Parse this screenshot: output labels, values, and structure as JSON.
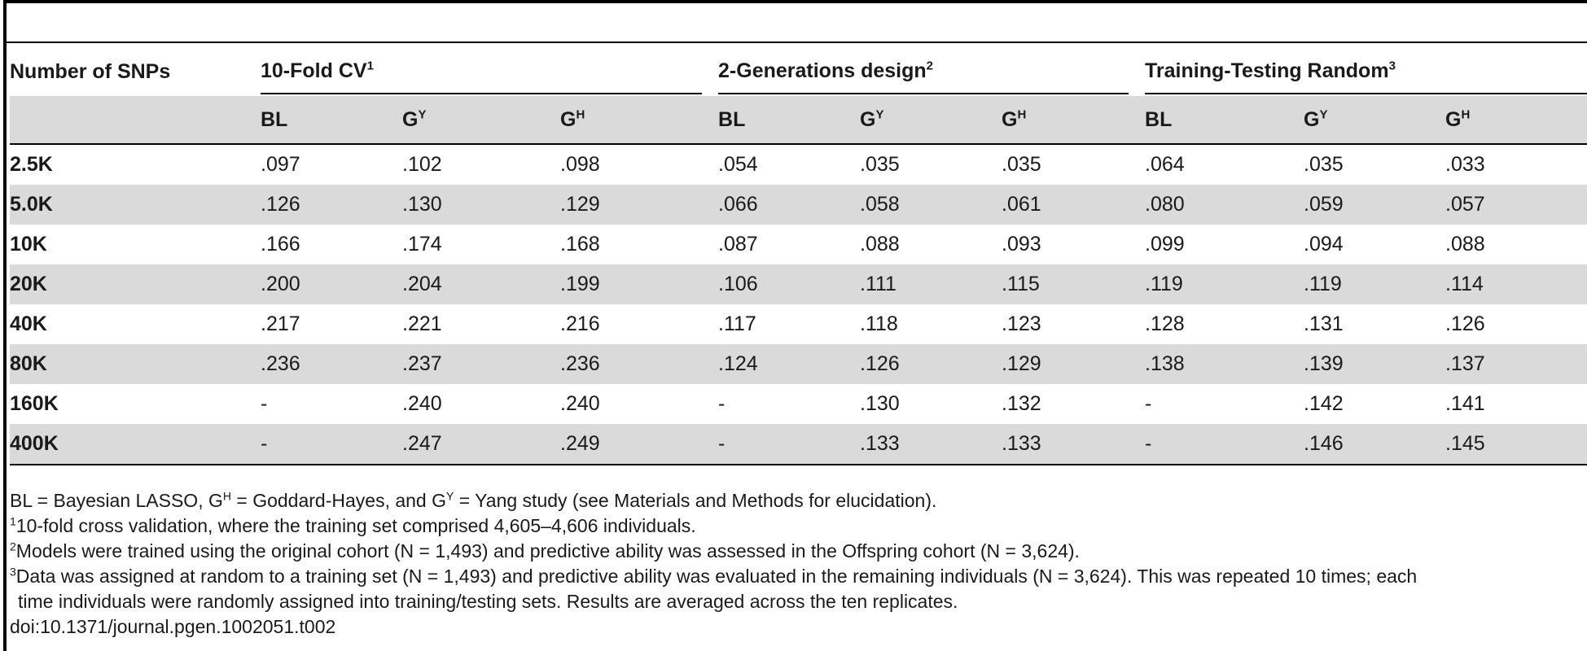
{
  "table": {
    "row_header": "Number of SNPs",
    "groups": [
      {
        "label": "10-Fold CV",
        "note": "1"
      },
      {
        "label": "2-Generations design",
        "note": "2"
      },
      {
        "label": "Training-Testing Random",
        "note": "3"
      }
    ],
    "subcols": [
      {
        "base": "BL",
        "sup": ""
      },
      {
        "base": "G",
        "sup": "Y"
      },
      {
        "base": "G",
        "sup": "H"
      }
    ],
    "rows": [
      {
        "snps": "2.5K",
        "v": [
          ".097",
          ".102",
          ".098",
          ".054",
          ".035",
          ".035",
          ".064",
          ".035",
          ".033"
        ]
      },
      {
        "snps": "5.0K",
        "v": [
          ".126",
          ".130",
          ".129",
          ".066",
          ".058",
          ".061",
          ".080",
          ".059",
          ".057"
        ]
      },
      {
        "snps": "10K",
        "v": [
          ".166",
          ".174",
          ".168",
          ".087",
          ".088",
          ".093",
          ".099",
          ".094",
          ".088"
        ]
      },
      {
        "snps": "20K",
        "v": [
          ".200",
          ".204",
          ".199",
          ".106",
          ".111",
          ".115",
          ".119",
          ".119",
          ".114"
        ]
      },
      {
        "snps": "40K",
        "v": [
          ".217",
          ".221",
          ".216",
          ".117",
          ".118",
          ".123",
          ".128",
          ".131",
          ".126"
        ]
      },
      {
        "snps": "80K",
        "v": [
          ".236",
          ".237",
          ".236",
          ".124",
          ".126",
          ".129",
          ".138",
          ".139",
          ".137"
        ]
      },
      {
        "snps": "160K",
        "v": [
          "-",
          ".240",
          ".240",
          "-",
          ".130",
          ".132",
          "-",
          ".142",
          ".141"
        ]
      },
      {
        "snps": "400K",
        "v": [
          "-",
          ".247",
          ".249",
          "-",
          ".133",
          ".133",
          "-",
          ".146",
          ".145"
        ]
      }
    ]
  },
  "footnotes": {
    "abbrev": {
      "p1": "BL = Bayesian LASSO, G",
      "s1": "H",
      "p2": " = Goddard-Hayes, and G",
      "s2": "Y",
      "p3": " = Yang study (see Materials and Methods for elucidation)."
    },
    "notes": [
      {
        "mark": "1",
        "text": "10-fold cross validation, where the training set comprised 4,605–4,606 individuals."
      },
      {
        "mark": "2",
        "text": "Models were trained using the original cohort (N = 1,493) and predictive ability was assessed in the Offspring cohort (N = 3,624)."
      },
      {
        "mark": "3",
        "text": "Data was assigned at random to a training set (N = 1,493) and predictive ability was evaluated in the remaining individuals (N = 3,624). This was repeated 10 times; each"
      }
    ],
    "continuation": "time individuals were randomly assigned into training/testing sets. Results are averaged across the ten replicates.",
    "doi": "doi:10.1371/journal.pgen.1002051.t002"
  }
}
